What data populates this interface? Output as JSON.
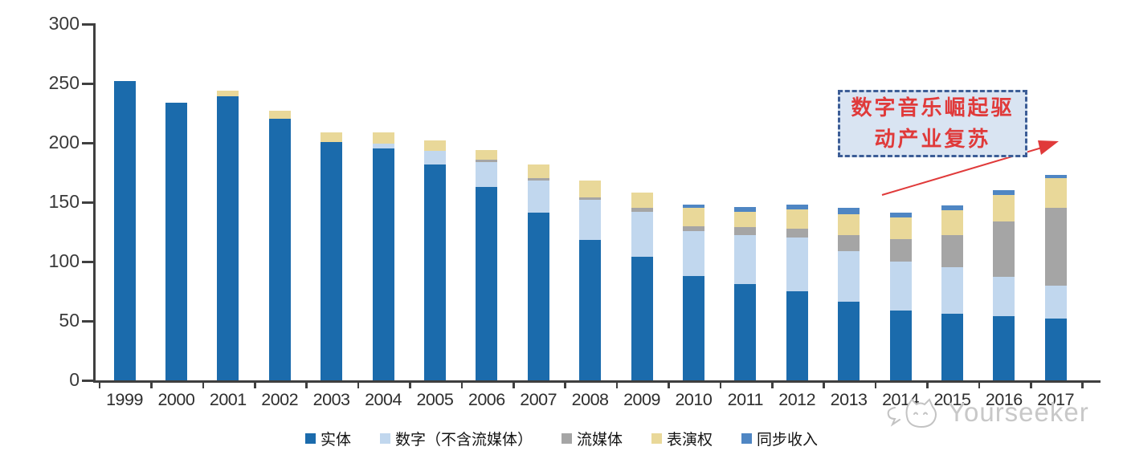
{
  "annotation": {
    "line1": "数字音乐崛起驱",
    "line2": "动产业复苏",
    "box_fill": "#d9e4f2",
    "border_color": "#3c5d96",
    "text_color": "#e03a3a",
    "arrow_color": "#e03a3a"
  },
  "watermark": {
    "brand": "Yourseeker",
    "logo": "cat-logo",
    "color": "#c8c8c8"
  },
  "chart_data": {
    "type": "bar",
    "stacked": true,
    "title": "",
    "xlabel": "",
    "ylabel": "",
    "ylim": [
      0,
      300
    ],
    "yticks": [
      0,
      50,
      100,
      150,
      200,
      250,
      300
    ],
    "grid": false,
    "legend_position": "bottom",
    "axis_color": "#3f3f3f",
    "categories": [
      "1999",
      "2000",
      "2001",
      "2002",
      "2003",
      "2004",
      "2005",
      "2006",
      "2007",
      "2008",
      "2009",
      "2010",
      "2011",
      "2012",
      "2013",
      "2014",
      "2015",
      "2016",
      "2017"
    ],
    "series": [
      {
        "key": "physical",
        "name": "实体",
        "color": "#1b6bac",
        "values": [
          252,
          234,
          239,
          220,
          201,
          195,
          182,
          163,
          141,
          118,
          104,
          88,
          81,
          75,
          66,
          59,
          56,
          54,
          52
        ]
      },
      {
        "key": "digital-excl-streaming",
        "name": "数字（不含流媒体）",
        "color": "#c1d7ee",
        "values": [
          0,
          0,
          0,
          0,
          0,
          4,
          11,
          21,
          27,
          34,
          38,
          38,
          41,
          45,
          43,
          41,
          39,
          33,
          28
        ]
      },
      {
        "key": "streaming",
        "name": "流媒体",
        "color": "#a5a5a5",
        "values": [
          0,
          0,
          0,
          0,
          0,
          0,
          0,
          2,
          2,
          2,
          3,
          4,
          7,
          8,
          13,
          19,
          27,
          47,
          65
        ]
      },
      {
        "key": "performance-rights",
        "name": "表演权",
        "color": "#e9d899",
        "values": [
          0,
          0,
          5,
          7,
          8,
          10,
          9,
          8,
          12,
          14,
          13,
          15,
          13,
          16,
          18,
          18,
          21,
          22,
          25
        ]
      },
      {
        "key": "sync-revenue",
        "name": "同步收入",
        "color": "#4f86c3",
        "values": [
          0,
          0,
          0,
          0,
          0,
          0,
          0,
          0,
          0,
          0,
          0,
          3,
          4,
          4,
          5,
          4,
          4,
          4,
          3
        ]
      }
    ]
  }
}
